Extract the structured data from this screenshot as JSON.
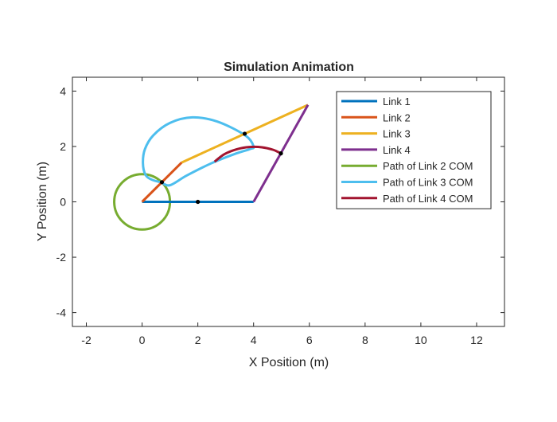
{
  "chart_data": {
    "type": "line",
    "title": "Simulation Animation",
    "xlabel": "X Position (m)",
    "ylabel": "Y Position (m)",
    "xlim": [
      -2.5,
      13
    ],
    "ylim": [
      -4.5,
      4.5
    ],
    "xticks": [
      -2,
      0,
      2,
      4,
      6,
      8,
      10,
      12
    ],
    "yticks": [
      -4,
      -2,
      0,
      2,
      4
    ],
    "xtick_labels": [
      "-2",
      "0",
      "2",
      "4",
      "6",
      "8",
      "10",
      "12"
    ],
    "ytick_labels": [
      "-4",
      "-2",
      "0",
      "2",
      "4"
    ],
    "grid": false,
    "legend_position": "top-right",
    "series": [
      {
        "name": "Link 1",
        "color": "#0072BD",
        "x": [
          0,
          4
        ],
        "y": [
          0,
          0
        ]
      },
      {
        "name": "Link 2",
        "color": "#D95319",
        "x": [
          0,
          1.42
        ],
        "y": [
          0,
          1.42
        ]
      },
      {
        "name": "Link 3",
        "color": "#EDB120",
        "x": [
          1.42,
          5.95
        ],
        "y": [
          1.42,
          3.5
        ]
      },
      {
        "name": "Link 4",
        "color": "#7E2F8E",
        "x": [
          4,
          5.95
        ],
        "y": [
          0,
          3.5
        ]
      },
      {
        "name": "Path of Link 2 COM",
        "color": "#77AC30",
        "shape": "circle",
        "center": [
          0,
          0
        ],
        "radius": 1
      },
      {
        "name": "Path of Link 3 COM",
        "color": "#4DBEEE",
        "x": [
          0.7,
          0.35,
          0.12,
          0.03,
          0.1,
          0.4,
          1.0,
          1.8,
          2.7,
          3.7,
          4.0,
          3.85,
          3.3,
          2.5,
          1.6,
          1.0,
          0.7
        ],
        "y": [
          0.7,
          0.8,
          0.98,
          1.4,
          1.9,
          2.4,
          2.85,
          3.05,
          2.9,
          2.4,
          2.0,
          1.9,
          1.72,
          1.4,
          0.95,
          0.6,
          0.7
        ]
      },
      {
        "name": "Path of Link 4 COM",
        "color": "#A2142F",
        "x": [
          2.6,
          2.95,
          3.4,
          3.85,
          4.3,
          4.7,
          4.98
        ],
        "y": [
          1.45,
          1.72,
          1.9,
          1.98,
          1.97,
          1.88,
          1.75
        ]
      }
    ],
    "com_markers": [
      {
        "x": 2.0,
        "y": 0.0
      },
      {
        "x": 0.71,
        "y": 0.71
      },
      {
        "x": 3.68,
        "y": 2.46
      },
      {
        "x": 4.98,
        "y": 1.75
      }
    ]
  }
}
